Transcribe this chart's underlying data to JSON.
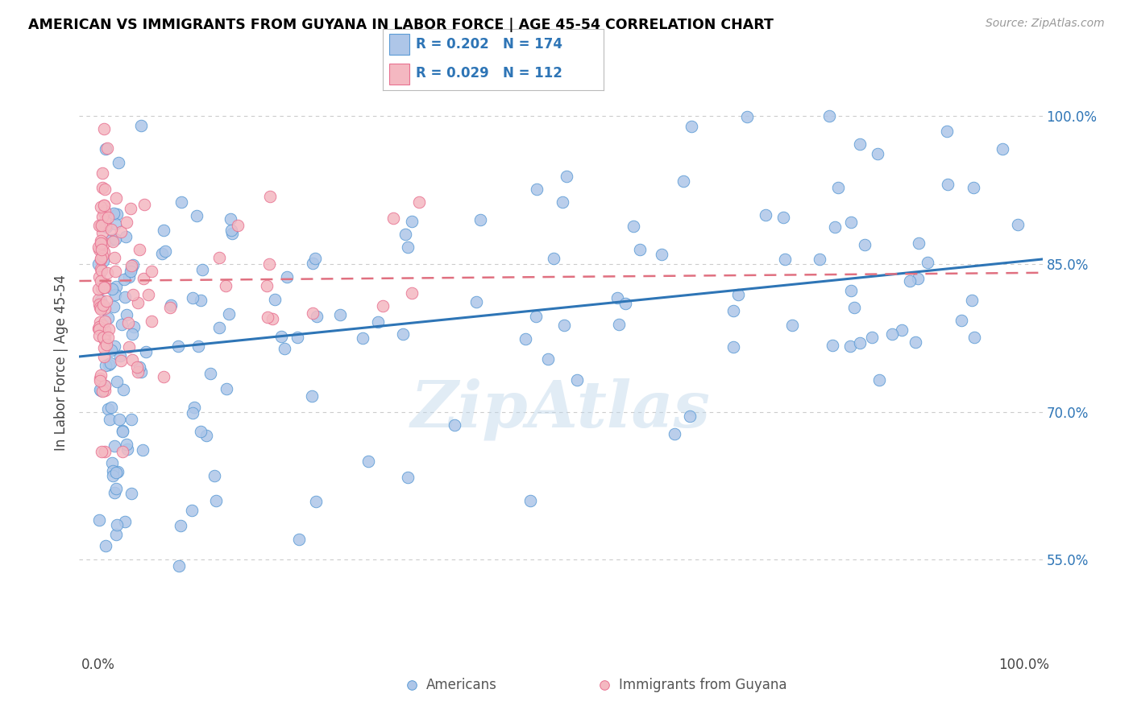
{
  "title": "AMERICAN VS IMMIGRANTS FROM GUYANA IN LABOR FORCE | AGE 45-54 CORRELATION CHART",
  "source": "Source: ZipAtlas.com",
  "ylabel": "In Labor Force | Age 45-54",
  "ytick_labels": [
    "55.0%",
    "70.0%",
    "85.0%",
    "100.0%"
  ],
  "ytick_values": [
    0.55,
    0.7,
    0.85,
    1.0
  ],
  "xlim": [
    -0.02,
    1.02
  ],
  "ylim": [
    0.455,
    1.045
  ],
  "american_R": 0.202,
  "american_N": 174,
  "guyana_R": 0.029,
  "guyana_N": 112,
  "american_color": "#aec6e8",
  "american_edge": "#5b9bd5",
  "guyana_color": "#f4b8c1",
  "guyana_edge": "#e87090",
  "trendline_american_color": "#2e75b6",
  "trendline_guyana_color": "#e07080",
  "watermark": "ZipAtlas",
  "legend_label_american": "Americans",
  "legend_label_guyana": "Immigrants from Guyana",
  "background_color": "#ffffff",
  "grid_color": "#cccccc",
  "title_color": "#000000",
  "tick_color": "#2e75b6"
}
